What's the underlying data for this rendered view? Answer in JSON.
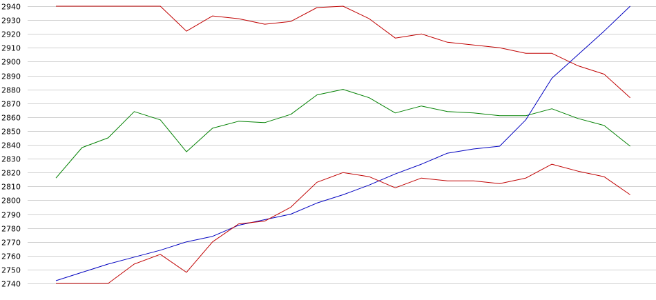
{
  "chart_data": {
    "type": "line",
    "title": "",
    "xlabel": "",
    "ylabel": "",
    "ylim": [
      2740,
      2940
    ],
    "y_ticks": [
      2740,
      2750,
      2760,
      2770,
      2780,
      2790,
      2800,
      2810,
      2820,
      2830,
      2840,
      2850,
      2860,
      2870,
      2880,
      2890,
      2900,
      2910,
      2920,
      2930,
      2940
    ],
    "y_tick_labels": [
      "2740",
      "2750",
      "2760",
      "2770",
      "2780",
      "2790",
      "2800",
      "2810",
      "2820",
      "2830",
      "2840",
      "2850",
      "2860",
      "2870",
      "2880",
      "2890",
      "2900",
      "2910",
      "2920",
      "2930",
      "2940"
    ],
    "x": [
      1,
      2,
      3,
      4,
      5,
      6,
      7,
      8,
      9,
      10,
      11,
      12,
      13,
      14,
      15,
      16,
      17,
      18,
      19,
      20,
      21,
      22,
      23
    ],
    "grid": true,
    "legend": "none",
    "series": [
      {
        "color": "#c00000",
        "values": [
          2940,
          2940,
          2940,
          2940,
          2940,
          2922,
          2933,
          2931,
          2927,
          2929,
          2939,
          2940,
          2931,
          2917,
          2920,
          2914,
          2912,
          2910,
          2906,
          2906,
          2897,
          2891,
          2874
        ]
      },
      {
        "color": "#008000",
        "values": [
          2816,
          2838,
          2845,
          2864,
          2858,
          2835,
          2852,
          2857,
          2856,
          2862,
          2876,
          2880,
          2874,
          2863,
          2868,
          2864,
          2863,
          2861,
          2861,
          2866,
          2859,
          2854,
          2839
        ]
      },
      {
        "color": "#0000c0",
        "values": [
          2742,
          2748,
          2754,
          2759,
          2764,
          2770,
          2774,
          2782,
          2786,
          2790,
          2798,
          2804,
          2811,
          2819,
          2826,
          2834,
          2837,
          2839,
          2858,
          2888,
          2905,
          2922,
          2940
        ]
      },
      {
        "color": "#c00000",
        "values": [
          2740,
          2740,
          2740,
          2754,
          2761,
          2748,
          2770,
          2783,
          2785,
          2795,
          2813,
          2820,
          2817,
          2809,
          2816,
          2814,
          2814,
          2812,
          2816,
          2826,
          2821,
          2817,
          2804
        ]
      }
    ]
  }
}
